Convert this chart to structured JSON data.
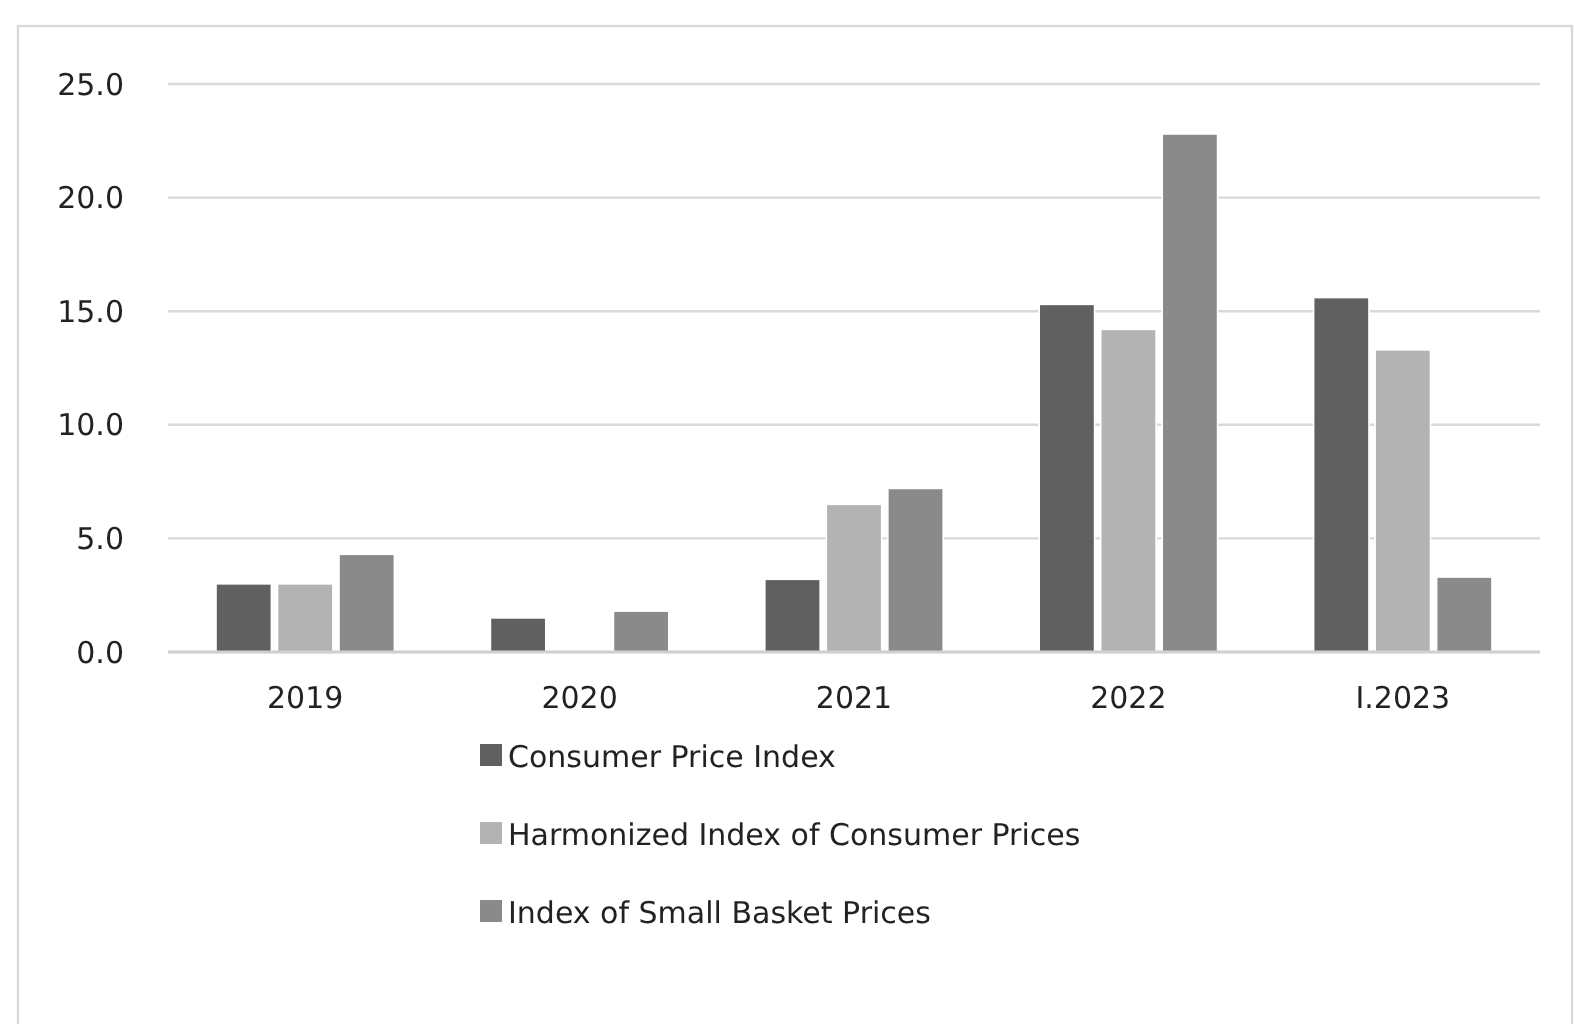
{
  "chart_data": {
    "type": "bar",
    "categories": [
      "2019",
      "2020",
      "2021",
      "2022",
      "I.2023"
    ],
    "series": [
      {
        "name": "Consumer Price Index",
        "color": "#606060",
        "values": [
          3.0,
          1.5,
          3.2,
          15.3,
          15.6
        ]
      },
      {
        "name": "Harmonized Index of Consumer Prices",
        "color": "#b3b3b3",
        "values": [
          3.0,
          null,
          6.5,
          14.2,
          13.3
        ]
      },
      {
        "name": "Index of Small Basket Prices",
        "color": "#8a8a8a",
        "values": [
          4.3,
          1.8,
          7.2,
          22.8,
          3.3
        ]
      }
    ],
    "ylim": [
      0,
      25
    ],
    "yticks": [
      {
        "value": 0,
        "label": "0.0"
      },
      {
        "value": 5,
        "label": "5.0"
      },
      {
        "value": 10,
        "label": "10.0"
      },
      {
        "value": 15,
        "label": "15.0"
      },
      {
        "value": 20,
        "label": "20.0"
      },
      {
        "value": 25,
        "label": "25.0"
      }
    ],
    "grid": "y",
    "legend": "bottom"
  }
}
